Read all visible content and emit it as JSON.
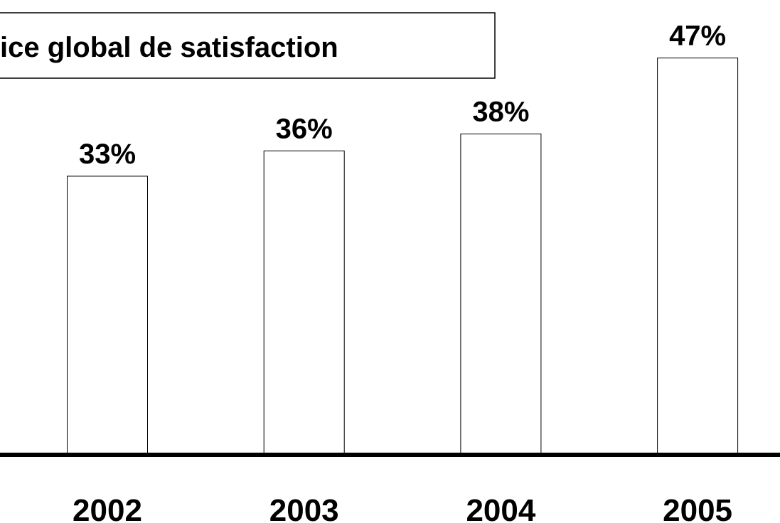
{
  "chart_data": {
    "type": "bar",
    "title": "ice global de satisfaction",
    "categories": [
      "2002",
      "2003",
      "2004",
      "2005"
    ],
    "values": [
      33,
      36,
      38,
      47
    ],
    "value_labels": [
      "33%",
      "36%",
      "38%",
      "47%"
    ],
    "color": "#ffffff"
  }
}
